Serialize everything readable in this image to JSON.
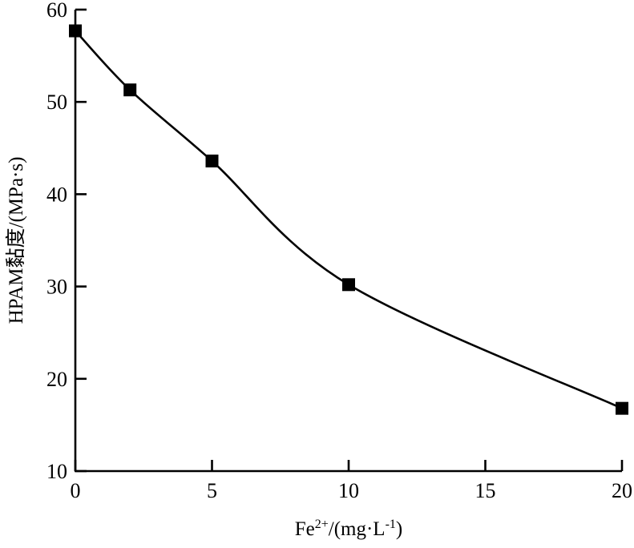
{
  "chart_data": {
    "type": "line",
    "title": "",
    "xlabel": {
      "base": "Fe",
      "sup": "2+",
      "mid": "/(mg·L",
      "sup2": "-1",
      "end": ")"
    },
    "ylabel": "HPAM黏度/(MPa·s)",
    "xlim": [
      0,
      20
    ],
    "ylim": [
      10,
      60
    ],
    "xticks": [
      0,
      5,
      10,
      15,
      20
    ],
    "yticks": [
      10,
      20,
      30,
      40,
      50,
      60
    ],
    "grid": false,
    "marker": "square",
    "line_style": "smooth",
    "color": "#000000",
    "x": [
      0,
      2,
      5,
      10,
      20
    ],
    "y": [
      57.7,
      51.3,
      43.6,
      30.2,
      16.8
    ]
  }
}
